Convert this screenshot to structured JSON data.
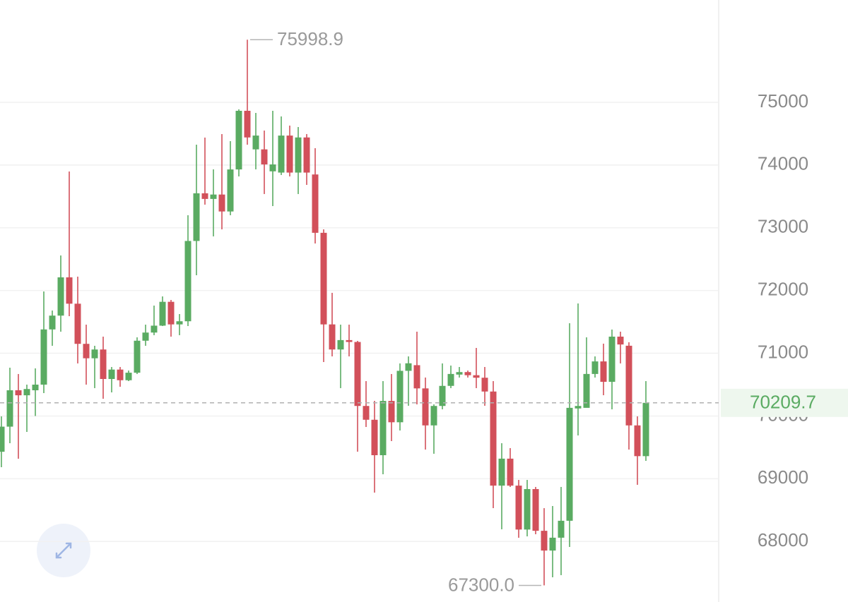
{
  "chart_data": {
    "type": "candlestick",
    "up_color": "#5aab62",
    "down_color": "#d2505a",
    "grid": true,
    "ylim": [
      67035,
      76631
    ],
    "yticks": [
      68000,
      69000,
      70000,
      71000,
      72000,
      73000,
      74000,
      75000
    ],
    "open": [
      69430,
      69830,
      70410,
      70330,
      70410,
      70500,
      71380,
      71600,
      72210,
      71790,
      71150,
      70920,
      71060,
      70590,
      70740,
      70570,
      70690,
      71200,
      71330,
      71440,
      71820,
      71460,
      71510,
      72790,
      73550,
      73460,
      73530,
      73260,
      73930,
      74865,
      74250,
      74250,
      73900,
      73880,
      74470,
      73880,
      74440,
      73850,
      72920,
      71460,
      71060,
      71210,
      71180,
      70160,
      69940,
      69375,
      70240,
      69900,
      70720,
      70810,
      70440,
      69850,
      70160,
      70480,
      70660,
      70700,
      70650,
      70610,
      70390,
      68890,
      69320,
      68890,
      68190,
      68835,
      68170,
      67855,
      68060,
      68330,
      70120,
      70130,
      70670,
      70870,
      70545,
      71265,
      71120,
      69850,
      69360
    ],
    "high": [
      69994,
      70770,
      70669,
      70500,
      70759,
      71985,
      71681,
      72559,
      73898,
      72221,
      71456,
      71119,
      71265,
      70781,
      70781,
      70725,
      71254,
      71456,
      71760,
      71906,
      71850,
      71625,
      73200,
      74325,
      74438,
      73931,
      74494,
      74381,
      74888,
      75998.9,
      74831,
      74550,
      74865,
      74775,
      74629,
      74606,
      74494,
      74269,
      72975,
      71963,
      71456,
      71456,
      71198,
      70556,
      70241,
      70556,
      70669,
      70838,
      70950,
      71344,
      70613,
      70185,
      70838,
      70804,
      70781,
      70725,
      71085,
      70781,
      70556,
      69566,
      69488,
      68981,
      68981,
      68869,
      68531,
      68565,
      68869,
      71479,
      71794,
      71254,
      70950,
      71153,
      71378,
      71344,
      71175,
      69994,
      70556
    ],
    "low": [
      69184,
      69566,
      69319,
      69746,
      70000,
      70365,
      71119,
      71344,
      71591,
      70838,
      70500,
      70444,
      70275,
      70376,
      70466,
      70556,
      70669,
      71119,
      71288,
      71434,
      71265,
      71288,
      71434,
      72244,
      73369,
      72863,
      72975,
      73200,
      73819,
      74325,
      73931,
      73538,
      73346,
      73841,
      73819,
      73538,
      73684,
      72750,
      70860,
      70950,
      70444,
      70950,
      69431,
      69825,
      68779,
      69071,
      69600,
      69769,
      70163,
      70185,
      69465,
      69398,
      70106,
      70444,
      70613,
      70613,
      70444,
      70163,
      68531,
      68194,
      68869,
      68059,
      68081,
      68115,
      67300,
      67429,
      67463,
      67913,
      69690,
      70219,
      70613,
      70331,
      70106,
      70838,
      69465,
      68903,
      69285
    ],
    "close": [
      69830,
      70410,
      70330,
      70430,
      70500,
      71380,
      71600,
      72210,
      71790,
      71150,
      70920,
      71060,
      70590,
      70740,
      70570,
      70690,
      71200,
      71330,
      71440,
      71820,
      71460,
      71510,
      72790,
      73550,
      73460,
      73530,
      73260,
      73930,
      74865,
      74440,
      74470,
      74010,
      74010,
      74470,
      73880,
      74440,
      73880,
      72920,
      71460,
      71060,
      71210,
      71180,
      70160,
      69940,
      69375,
      70240,
      69900,
      70720,
      70840,
      70440,
      69850,
      70160,
      70480,
      70670,
      70700,
      70650,
      70610,
      70390,
      68890,
      69320,
      68890,
      68190,
      68835,
      68170,
      67855,
      68060,
      68330,
      70130,
      70160,
      70670,
      70870,
      70545,
      71265,
      71140,
      69850,
      69360,
      70209.7
    ],
    "high_marker": {
      "value": 75998.9,
      "label": "75998.9"
    },
    "low_marker": {
      "value": 67300,
      "label": "67300.0"
    },
    "last_price": {
      "value": 70209.7,
      "label": "70209.7"
    }
  }
}
